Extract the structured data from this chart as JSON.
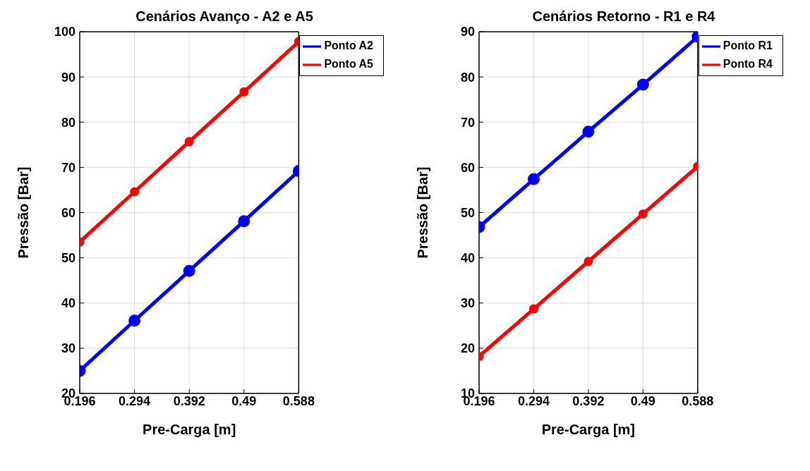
{
  "chart_data": [
    {
      "type": "line",
      "title": "Cenários Avanço - A2 e A5",
      "xlabel": "Pre-Carga [m]",
      "ylabel": "Pressão [Bar]",
      "x": [
        0.196,
        0.294,
        0.392,
        0.49,
        0.588
      ],
      "xlim": [
        0.196,
        0.588
      ],
      "xticks": [
        0.196,
        0.294,
        0.392,
        0.49,
        0.588
      ],
      "ylim": [
        20,
        100
      ],
      "yticks": [
        20,
        30,
        40,
        50,
        60,
        70,
        80,
        90,
        100
      ],
      "grid": true,
      "legend": "top right",
      "marker": "circle",
      "series": [
        {
          "name": "Ponto A2",
          "color": "#0000ff",
          "values": [
            25,
            36.1,
            47.1,
            58.1,
            69.2
          ]
        },
        {
          "name": "Ponto A5",
          "color": "#ff0000",
          "values": [
            53.5,
            64.6,
            75.7,
            86.7,
            97.8
          ]
        }
      ]
    },
    {
      "type": "line",
      "title": "Cenários Retorno - R1 e R4",
      "xlabel": "Pre-Carga [m]",
      "ylabel": "Pressão [Bar]",
      "x": [
        0.196,
        0.294,
        0.392,
        0.49,
        0.588
      ],
      "xlim": [
        0.196,
        0.588
      ],
      "xticks": [
        0.196,
        0.294,
        0.392,
        0.49,
        0.588
      ],
      "ylim": [
        10,
        90
      ],
      "yticks": [
        10,
        20,
        30,
        40,
        50,
        60,
        70,
        80,
        90
      ],
      "grid": true,
      "legend": "top right",
      "marker": "circle",
      "series": [
        {
          "name": "Ponto R1",
          "color": "#0000ff",
          "values": [
            46.8,
            57.4,
            67.9,
            78.3,
            88.9
          ]
        },
        {
          "name": "Ponto R4",
          "color": "#ff0000",
          "values": [
            18.2,
            28.7,
            39.2,
            49.7,
            60.2
          ]
        }
      ]
    }
  ]
}
